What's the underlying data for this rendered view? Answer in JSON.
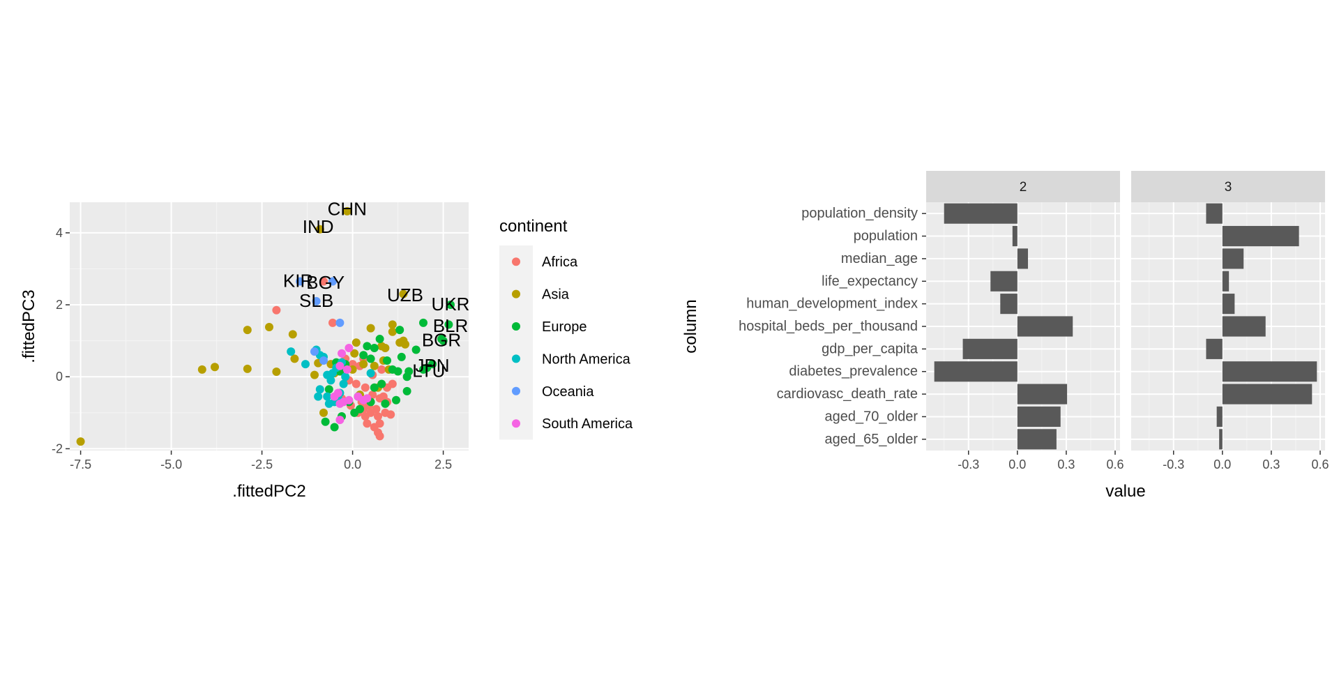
{
  "chart_data": [
    {
      "type": "scatter",
      "xlabel": ".fittedPC2",
      "ylabel": ".fittedPC3",
      "xlim": [
        -7.8,
        3.2
      ],
      "ylim": [
        -2.05,
        4.85
      ],
      "x_ticks": [
        -7.5,
        -5.0,
        -2.5,
        0.0,
        2.5
      ],
      "x_tick_labels": [
        "-7.5",
        "-5.0",
        "-2.5",
        "0.0",
        "2.5"
      ],
      "y_ticks": [
        -2,
        0,
        2,
        4
      ],
      "y_tick_labels": [
        "-2",
        "0",
        "2",
        "4"
      ],
      "grid": true,
      "legend": {
        "title": "continent",
        "position": "right",
        "entries": [
          {
            "label": "Africa",
            "color": "#F8766D"
          },
          {
            "label": "Asia",
            "color": "#B79F00"
          },
          {
            "label": "Europe",
            "color": "#00BA38"
          },
          {
            "label": "North America",
            "color": "#00BFC4"
          },
          {
            "label": "Oceania",
            "color": "#619CFF"
          },
          {
            "label": "South America",
            "color": "#F564E3"
          }
        ]
      },
      "labels": [
        {
          "text": "CHN",
          "x": -0.15,
          "y": 4.65
        },
        {
          "text": "IND",
          "x": -0.95,
          "y": 4.15
        },
        {
          "text": "KIR",
          "x": -1.5,
          "y": 2.65
        },
        {
          "text": "BGY",
          "x": -0.75,
          "y": 2.6
        },
        {
          "text": "SLB",
          "x": -1.0,
          "y": 2.1
        },
        {
          "text": "UZB",
          "x": 1.45,
          "y": 2.25
        },
        {
          "text": "UKR",
          "x": 2.7,
          "y": 2.0
        },
        {
          "text": "BLR",
          "x": 2.7,
          "y": 1.4
        },
        {
          "text": "BGR",
          "x": 2.45,
          "y": 1.0
        },
        {
          "text": "JPN",
          "x": 2.2,
          "y": 0.3
        },
        {
          "text": "LTU",
          "x": 2.1,
          "y": 0.15
        }
      ],
      "series": [
        {
          "name": "Africa",
          "color": "#F8766D",
          "points": [
            [
              -2.1,
              1.85
            ],
            [
              -0.8,
              2.65
            ],
            [
              -0.55,
              1.5
            ],
            [
              -0.2,
              0.5
            ],
            [
              0.0,
              0.35
            ],
            [
              0.2,
              0.3
            ],
            [
              0.3,
              0.5
            ],
            [
              -0.1,
              -0.1
            ],
            [
              0.1,
              -0.2
            ],
            [
              0.35,
              -0.3
            ],
            [
              0.55,
              -0.5
            ],
            [
              0.75,
              -0.6
            ],
            [
              0.95,
              -0.7
            ],
            [
              0.3,
              -0.9
            ],
            [
              0.5,
              -1.0
            ],
            [
              0.7,
              -1.1
            ],
            [
              0.9,
              -1.0
            ],
            [
              1.05,
              -1.05
            ],
            [
              0.4,
              -1.3
            ],
            [
              0.6,
              -1.4
            ],
            [
              0.75,
              -1.3
            ],
            [
              0.7,
              -1.55
            ],
            [
              0.75,
              -1.65
            ],
            [
              0.25,
              -0.7
            ],
            [
              -0.05,
              -0.8
            ],
            [
              0.15,
              -1.0
            ],
            [
              0.45,
              -0.8
            ],
            [
              0.85,
              -0.55
            ],
            [
              1.1,
              -0.2
            ],
            [
              0.55,
              0.05
            ],
            [
              0.8,
              0.2
            ],
            [
              0.95,
              -0.3
            ],
            [
              0.65,
              -0.9
            ],
            [
              0.35,
              -1.1
            ],
            [
              -0.3,
              -0.6
            ]
          ]
        },
        {
          "name": "Asia",
          "color": "#B79F00",
          "points": [
            [
              -7.5,
              -1.8
            ],
            [
              -4.15,
              0.2
            ],
            [
              -3.8,
              0.27
            ],
            [
              -2.9,
              1.3
            ],
            [
              -2.9,
              0.22
            ],
            [
              -2.3,
              1.38
            ],
            [
              -2.1,
              0.14
            ],
            [
              -1.65,
              1.18
            ],
            [
              -1.6,
              0.5
            ],
            [
              -1.05,
              0.05
            ],
            [
              -0.95,
              0.38
            ],
            [
              -0.9,
              4.1
            ],
            [
              -0.15,
              4.6
            ],
            [
              1.4,
              2.3
            ],
            [
              -0.8,
              -1.0
            ],
            [
              -0.6,
              0.35
            ],
            [
              -0.5,
              0.1
            ],
            [
              0.1,
              0.95
            ],
            [
              0.05,
              0.65
            ],
            [
              0.3,
              0.35
            ],
            [
              0.6,
              0.3
            ],
            [
              0.8,
              0.85
            ],
            [
              0.9,
              0.8
            ],
            [
              1.1,
              1.45
            ],
            [
              1.1,
              1.25
            ],
            [
              1.3,
              0.95
            ],
            [
              1.45,
              0.9
            ],
            [
              1.4,
              1.0
            ],
            [
              0.5,
              1.35
            ],
            [
              0.0,
              0.2
            ],
            [
              -0.2,
              0.3
            ],
            [
              0.7,
              -0.3
            ],
            [
              0.85,
              0.45
            ],
            [
              0.2,
              -0.5
            ],
            [
              1.0,
              0.2
            ]
          ]
        },
        {
          "name": "Europe",
          "color": "#00BA38",
          "points": [
            [
              2.7,
              2.0
            ],
            [
              2.65,
              1.45
            ],
            [
              2.45,
              1.05
            ],
            [
              2.5,
              1.0
            ],
            [
              2.2,
              0.35
            ],
            [
              2.05,
              0.25
            ],
            [
              1.95,
              0.2
            ],
            [
              1.95,
              1.5
            ],
            [
              1.75,
              0.75
            ],
            [
              1.55,
              0.15
            ],
            [
              1.5,
              -0.4
            ],
            [
              1.5,
              0.0
            ],
            [
              1.3,
              1.3
            ],
            [
              1.35,
              0.55
            ],
            [
              1.1,
              0.2
            ],
            [
              1.2,
              -0.65
            ],
            [
              0.95,
              0.45
            ],
            [
              0.75,
              1.05
            ],
            [
              0.6,
              0.8
            ],
            [
              0.5,
              0.5
            ],
            [
              0.4,
              0.85
            ],
            [
              0.3,
              0.6
            ],
            [
              0.8,
              -0.2
            ],
            [
              0.6,
              -0.3
            ],
            [
              0.5,
              -0.7
            ],
            [
              0.2,
              -0.9
            ],
            [
              0.05,
              -1.0
            ],
            [
              -0.1,
              -0.7
            ],
            [
              -0.3,
              -1.1
            ],
            [
              -0.5,
              -1.4
            ],
            [
              -0.75,
              -1.25
            ],
            [
              -0.65,
              -0.35
            ],
            [
              -0.45,
              0.4
            ],
            [
              -0.35,
              0.15
            ],
            [
              0.15,
              -0.55
            ],
            [
              0.9,
              -0.75
            ],
            [
              -0.2,
              0.35
            ],
            [
              1.25,
              0.15
            ]
          ]
        },
        {
          "name": "North America",
          "color": "#00BFC4",
          "points": [
            [
              -1.7,
              0.7
            ],
            [
              -1.3,
              0.35
            ],
            [
              -1.0,
              0.75
            ],
            [
              -0.9,
              0.6
            ],
            [
              -0.8,
              0.55
            ],
            [
              -0.7,
              0.05
            ],
            [
              -0.55,
              0.1
            ],
            [
              -0.45,
              0.25
            ],
            [
              -0.9,
              -0.35
            ],
            [
              -0.95,
              -0.55
            ],
            [
              -0.7,
              -0.55
            ],
            [
              -0.65,
              -0.75
            ],
            [
              -0.5,
              -0.7
            ],
            [
              -0.35,
              -0.45
            ],
            [
              -0.25,
              -0.2
            ],
            [
              -0.3,
              0.4
            ],
            [
              -0.2,
              0.0
            ],
            [
              0.5,
              0.1
            ],
            [
              -0.4,
              -0.6
            ],
            [
              -0.6,
              -0.1
            ]
          ]
        },
        {
          "name": "Oceania",
          "color": "#619CFF",
          "points": [
            [
              -1.45,
              2.65
            ],
            [
              -1.0,
              2.1
            ],
            [
              -0.35,
              1.5
            ],
            [
              -0.55,
              2.65
            ],
            [
              -1.05,
              0.7
            ],
            [
              -0.8,
              0.45
            ]
          ]
        },
        {
          "name": "South America",
          "color": "#F564E3",
          "points": [
            [
              -0.1,
              0.8
            ],
            [
              -0.3,
              0.65
            ],
            [
              -0.35,
              0.3
            ],
            [
              -0.15,
              0.2
            ],
            [
              -0.4,
              -0.45
            ],
            [
              -0.35,
              -0.75
            ],
            [
              -0.25,
              -0.7
            ],
            [
              -0.1,
              -0.65
            ],
            [
              0.15,
              -0.55
            ],
            [
              0.3,
              -0.65
            ],
            [
              0.4,
              -0.6
            ],
            [
              -0.35,
              -1.2
            ],
            [
              -0.5,
              -0.55
            ]
          ]
        }
      ]
    },
    {
      "type": "bar",
      "orientation": "horizontal",
      "xlabel": "value",
      "ylabel": "column",
      "xlim": [
        -0.56,
        0.63
      ],
      "x_ticks": [
        -0.3,
        0.0,
        0.3,
        0.6
      ],
      "x_tick_labels": [
        "-0.3",
        "0.0",
        "0.3",
        "0.6"
      ],
      "grid": true,
      "bar_color": "#595959",
      "categories": [
        "population_density",
        "population",
        "median_age",
        "life_expectancy",
        "human_development_index",
        "hospital_beds_per_thousand",
        "gdp_per_capita",
        "diabetes_prevalence",
        "cardiovasc_death_rate",
        "aged_70_older",
        "aged_65_older"
      ],
      "facets": [
        {
          "name": "2",
          "values": [
            -0.45,
            -0.03,
            0.065,
            -0.165,
            -0.105,
            0.34,
            -0.335,
            -0.51,
            0.305,
            0.265,
            0.24
          ]
        },
        {
          "name": "3",
          "values": [
            -0.1,
            0.47,
            0.13,
            0.04,
            0.075,
            0.265,
            -0.1,
            0.58,
            0.55,
            -0.035,
            -0.02
          ]
        }
      ]
    }
  ]
}
